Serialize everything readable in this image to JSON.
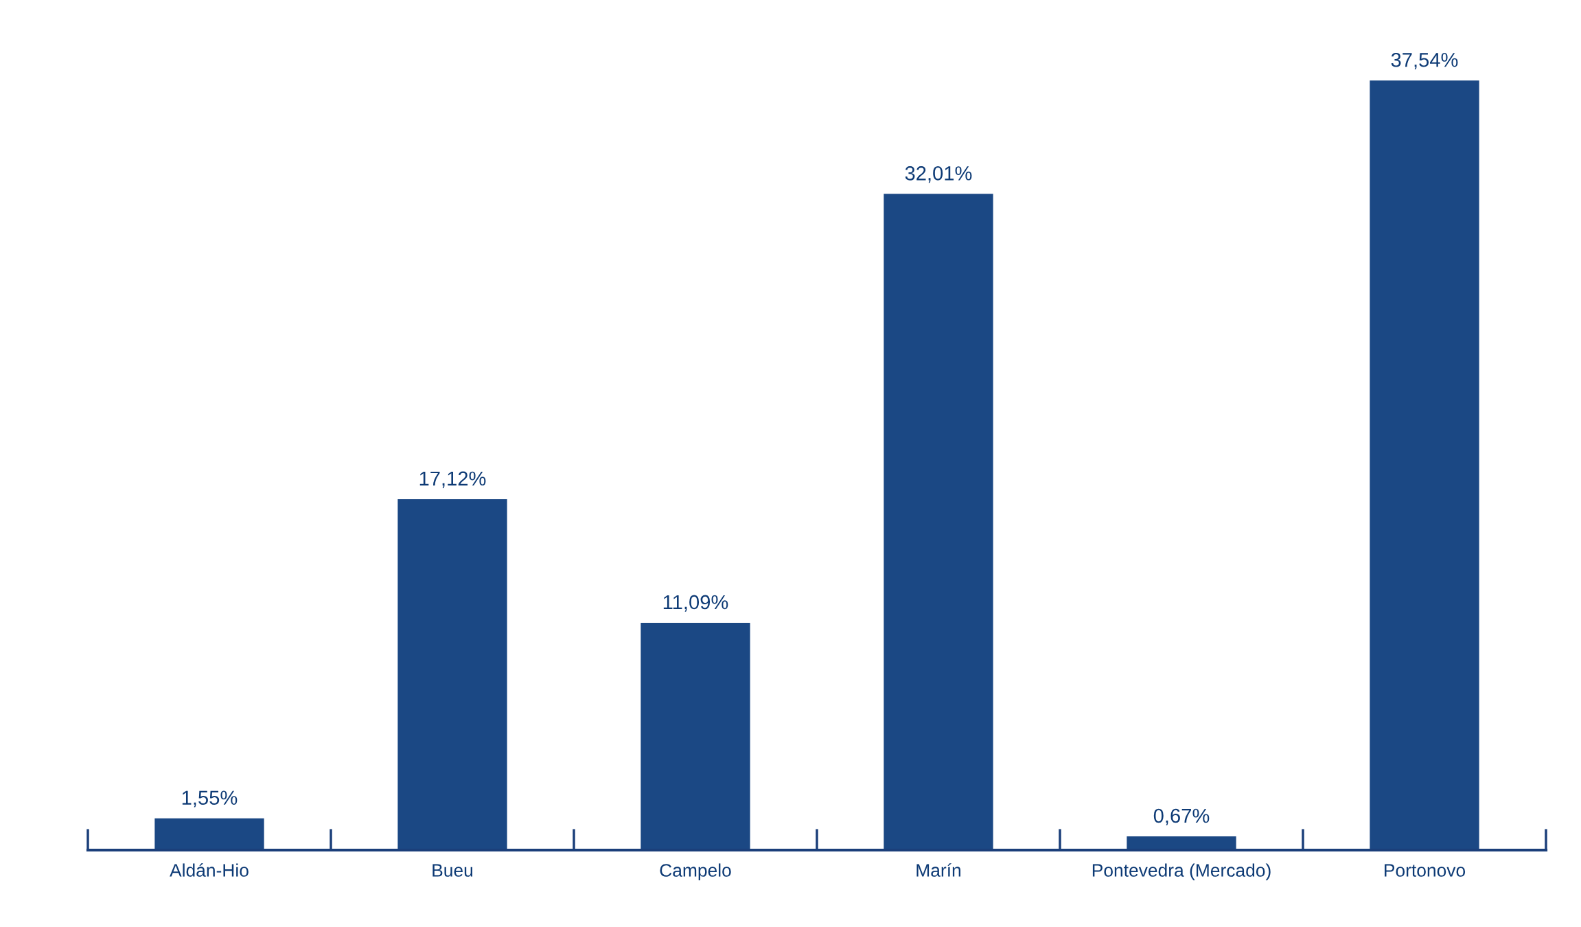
{
  "chart_data": {
    "type": "bar",
    "categories": [
      "Aldán-Hio",
      "Bueu",
      "Campelo",
      "Marín",
      "Pontevedra (Mercado)",
      "Portonovo"
    ],
    "values": [
      1.55,
      17.12,
      11.09,
      32.01,
      0.67,
      37.54
    ],
    "value_labels": [
      "1,55%",
      "17,12%",
      "11,09%",
      "32,01%",
      "0,67%",
      "37,54%"
    ],
    "color": "#1b4884"
  }
}
